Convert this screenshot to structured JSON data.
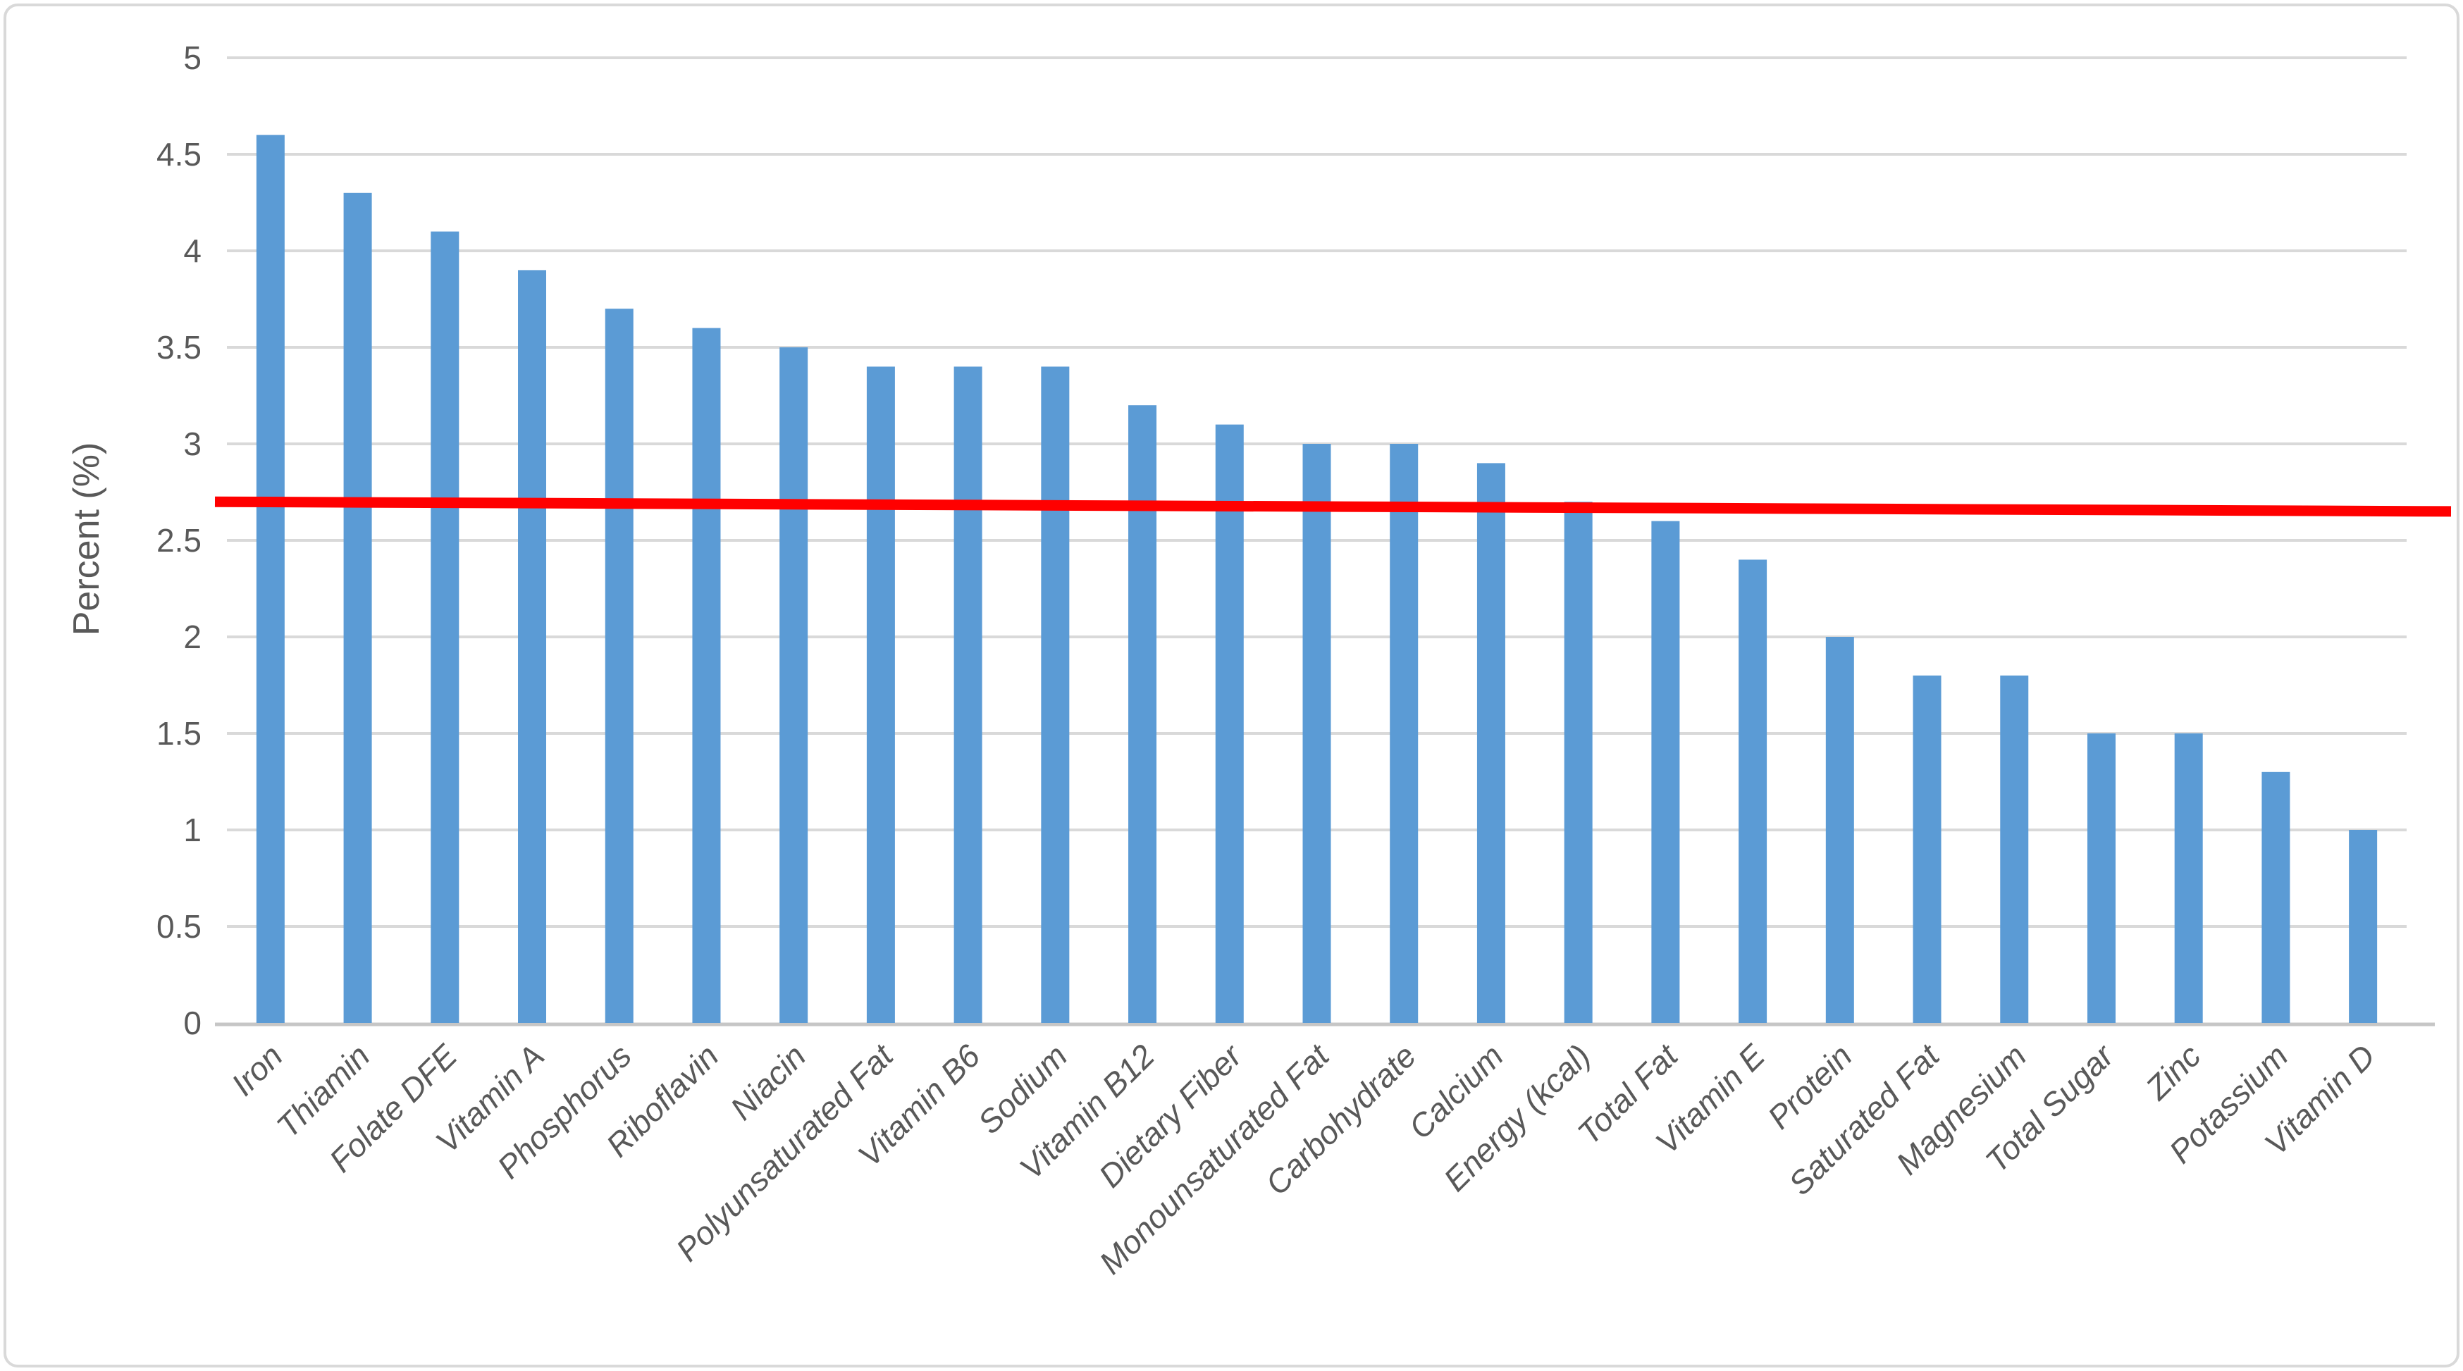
{
  "chart_data": {
    "type": "bar",
    "title": "",
    "xlabel": "",
    "ylabel": "Percent (%)",
    "categories": [
      "Iron",
      "Thiamin",
      "Folate DFE",
      "Vitamin A",
      "Phosphorus",
      "Riboflavin",
      "Niacin",
      "Polyunsaturated Fat",
      "Vitamin B6",
      "Sodium",
      "Vitamin B12",
      "Dietary Fiber",
      "Monounsaturated Fat",
      "Carbohydrate",
      "Calcium",
      "Energy (kcal)",
      "Total Fat",
      "Vitamin E",
      "Protein",
      "Saturated Fat",
      "Magnesium",
      "Total Sugar",
      "Zinc",
      "Potassium",
      "Vitamin D"
    ],
    "values": [
      4.6,
      4.3,
      4.1,
      3.9,
      3.7,
      3.6,
      3.5,
      3.4,
      3.4,
      3.4,
      3.2,
      3.1,
      3.0,
      3.0,
      2.9,
      2.7,
      2.6,
      2.4,
      2.0,
      1.8,
      1.8,
      1.5,
      1.5,
      1.3,
      1.0
    ],
    "ylim": [
      0,
      5
    ],
    "ytick_step": 0.5,
    "ytick_labels": [
      "0",
      "0.5",
      "1",
      "1.5",
      "2",
      "2.5",
      "3",
      "3.5",
      "4",
      "4.5",
      "5"
    ],
    "grid": true,
    "legend_position": "none",
    "bar_color": "#5B9BD5",
    "reference_line": {
      "color": "#FF0000",
      "start_value": 2.7,
      "end_value": 2.65
    }
  },
  "colors": {
    "background": "#FFFFFF",
    "chart_border": "#D9D9D9",
    "gridline": "#D9D9D9",
    "axis_line": "#C6C6C6",
    "text": "#595959",
    "bar": "#5B9BD5",
    "reference_line": "#FF0000"
  }
}
